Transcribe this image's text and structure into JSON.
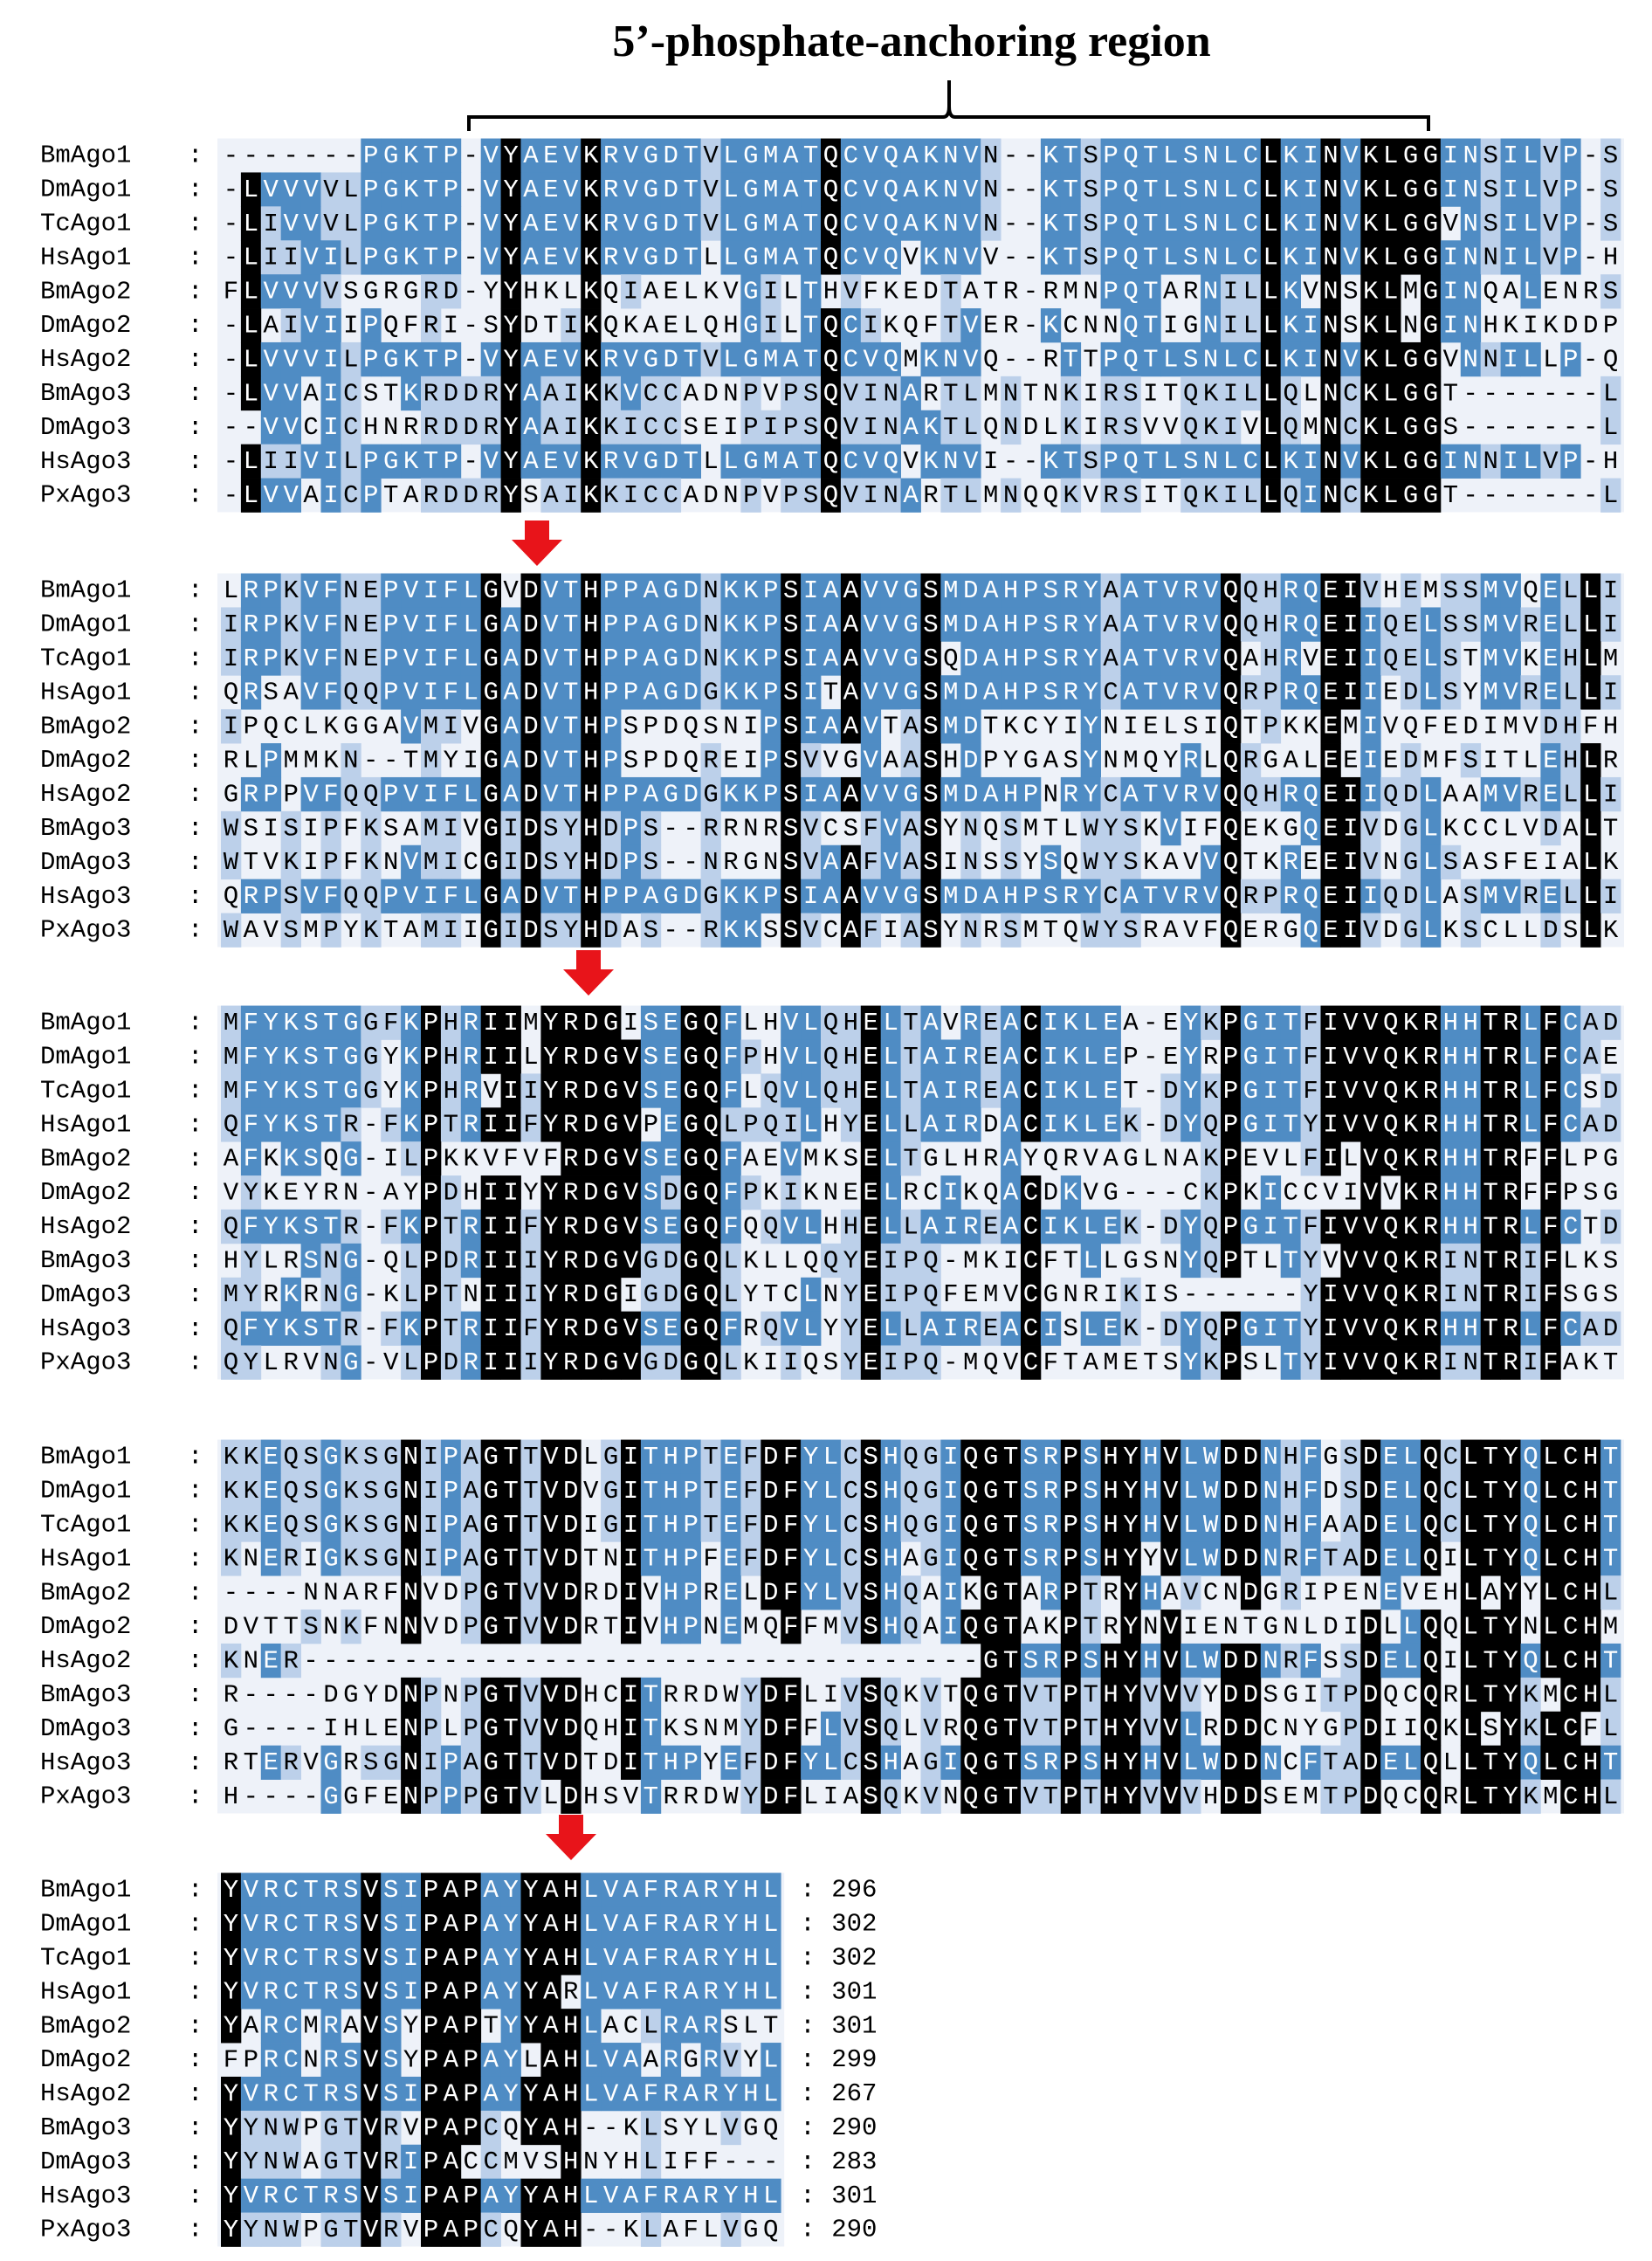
{
  "title": "5’-phosphate-anchoring region",
  "separator": ":",
  "blocks": [
    {
      "rows": [
        {
          "name": "BmAgo1",
          "sequence": "-------PGKTP-VYAEVKRVGDTVLGMATQCVQAKNVN--KTSPQTLSNLCLKINVKLGGINSILVP-S"
        },
        {
          "name": "DmAgo1",
          "sequence": "-LVVVVLPGKTP-VYAEVKRVGDTVLGMATQCVQAKNVN--KTSPQTLSNLCLKINVKLGGINSILVP-S"
        },
        {
          "name": "TcAgo1",
          "sequence": "-LIVVVLPGKTP-VYAEVKRVGDTVLGMATQCVQAKNVN--KTSPQTLSNLCLKINVKLGGVNSILVP-S"
        },
        {
          "name": "HsAgo1",
          "sequence": "-LIIVILPGKTP-VYAEVKRVGDTLLGMATQCVQVKNVV--KTSPQTLSNLCLKINVKLGGINNILVP-H"
        },
        {
          "name": "BmAgo2",
          "sequence": "FLVVVVSGRGRD-YYHKLKQIAELKVGILTHVFKEDTATR-RMNPQTARNILLKVNSKLMGINQALENRS"
        },
        {
          "name": "DmAgo2",
          "sequence": "-LAIVIIPQFRI-SYDTIKQKAELQHGILTQCIKQFTVER-KCNNQTIGNILLKINSKLNGINHKIKDDP"
        },
        {
          "name": "HsAgo2",
          "sequence": "-LVVVILPGKTP-VYAEVKRVGDTVLGMATQCVQMKNVQ--RTTPQTLSNLCLKINVKLGGVNNILLP-Q"
        },
        {
          "name": "BmAgo3",
          "sequence": "-LVVAICSTKRDDRYAAIKKVCCADNPVPSQVINARTLMNTNKIRSITQKILLQLNCKLGGT-------L"
        },
        {
          "name": "DmAgo3",
          "sequence": "--VVCICHNRRDDRYAAIKKICCSEIPIPSQVINAKTLQNDLKIRSVVQKIVLQMNCKLGGS-------L"
        },
        {
          "name": "HsAgo3",
          "sequence": "-LIIVILPGKTP-VYAEVKRVGDTLLGMATQCVQVKNVI--KTSPQTLSNLCLKINVKLGGINNILVP-H"
        },
        {
          "name": "PxAgo3",
          "sequence": "-LVVAICPTARDDRYSAIKKICCADNPVPSQVINARTLMNQQKVRSITQKILLQINCKLGGT-------L"
        }
      ]
    },
    {
      "rows": [
        {
          "name": "BmAgo1",
          "sequence": "LRPKVFNEPVIFLGVDVTHPPAGDNKKPSIAAVVGSMDAHPSRYAATVRVQQHRQEIVHEMSSMVQELLI"
        },
        {
          "name": "DmAgo1",
          "sequence": "IRPKVFNEPVIFLGADVTHPPAGDNKKPSIAAVVGSMDAHPSRYAATVRVQQHRQEIIQELSSMVRELLI"
        },
        {
          "name": "TcAgo1",
          "sequence": "IRPKVFNEPVIFLGADVTHPPAGDNKKPSIAAVVGSQDAHPSRYAATVRVQAHRVEIIQELSTMVKEHLM"
        },
        {
          "name": "HsAgo1",
          "sequence": "QRSAVFQQPVIFLGADVTHPPAGDGKKPSITAVVGSMDAHPSRYCATVRVQRPRQEIIEDLSYMVRELLI"
        },
        {
          "name": "BmAgo2",
          "sequence": "IPQCLKGGAVMIVGADVTHPSPDQSNIPSIAAVTASMDTKCYIYNIELSIQTPKKEMIVQFEDIMVDHFH"
        },
        {
          "name": "DmAgo2",
          "sequence": "RLPMMKN--TMYIGADVTHPSPDQREIPSVVGVAASHDPYGASYNMQYRLQRGALEEIEDMFSITLEHLR"
        },
        {
          "name": "HsAgo2",
          "sequence": "GRPPVFQQPVIFLGADVTHPPAGDGKKPSIAAVVGSMDAHPNRYCATVRVQQHRQEIIQDLAAMVRELLI"
        },
        {
          "name": "BmAgo3",
          "sequence": "WSISIPFKSAMIVGIDSYHDPS--RRNRSVCSFVASYNQSMTLWYSKVIFQEKGQEIVDGLKCCLVDALT"
        },
        {
          "name": "DmAgo3",
          "sequence": "WTVKIPFKNVMICGIDSYHDPS--NRGNSVAAFVASINSSYSQWYSKAVVQTKREEIVNGLSASFEIALK"
        },
        {
          "name": "HsAgo3",
          "sequence": "QRPSVFQQPVIFLGADVTHPPAGDGKKPSIAAVVGSMDAHPSRYCATVRVQRPRQEIIQDLASMVRELLI"
        },
        {
          "name": "PxAgo3",
          "sequence": "WAVSMPYKTAMIIGIDSYHDAS--RKKSSVCAFIASYNRSMTQWYSRAVFQERGQEIVDGLKSCLLDSLK"
        }
      ]
    },
    {
      "rows": [
        {
          "name": "BmAgo1",
          "sequence": "MFYKSTGGFKPHRIIMYRDGISEGQFLHVLQHELTAVREACIKLEA-EYKPGITFIVVQKRHHTRLFCAD"
        },
        {
          "name": "DmAgo1",
          "sequence": "MFYKSTGGYKPHRIILYRDGVSEGQFPHVLQHELTAIREACIKLEP-EYRPGITFIVVQKRHHTRLFCAE"
        },
        {
          "name": "TcAgo1",
          "sequence": "MFYKSTGGYKPHRVIIYRDGVSEGQFLQVLQHELTAIREACIKLET-DYKPGITFIVVQKRHHTRLFCSD"
        },
        {
          "name": "HsAgo1",
          "sequence": "QFYKSTR-FKPTRIIFYRDGVPEGQLPQILHYELLAIRDACIKLEK-DYQPGITYIVVQKRHHTRLFCAD"
        },
        {
          "name": "BmAgo2",
          "sequence": "AFKKSQG-ILPKKVFVFRDGVSEGQFAEVMKSELTGLHRAYQRVAGLNAKPEVLFILVQKRHHTRFFLPG"
        },
        {
          "name": "DmAgo2",
          "sequence": "VYKEYRN-AYPDHIIYYRDGVSDGQFPKIKNEELRCIKQACDKVG---CKPKICCVIVVKRHHTRFFPSG"
        },
        {
          "name": "HsAgo2",
          "sequence": "QFYKSTR-FKPTRIIFYRDGVSEGQFQQVLHHELLAIREACIKLEK-DYQPGITFIVVQKRHHTRLFCTD"
        },
        {
          "name": "BmAgo3",
          "sequence": "HYLRSNG-QLPDRIIIYRDGVGDGQLKLLQQYEIPQ-MKICFTLLGSNYQPTLTYVVVQKRINTRIFLKS"
        },
        {
          "name": "DmAgo3",
          "sequence": "MYRKRNG-KLPTNIIIYRDGIGDGQLYTCLNYEIPQFEMVCGNRIKIS------YIVVQKRINTRIFSGS"
        },
        {
          "name": "HsAgo3",
          "sequence": "QFYKSTR-FKPTRIIFYRDGVSEGQFRQVLYYELLAIREACISLEK-DYQPGITYIVVQKRHHTRLFCAD"
        },
        {
          "name": "PxAgo3",
          "sequence": "QYLRVNG-VLPDRIIIYRDGVGDGQLKIIQSYEIPQ-MQVCFTAMETSYKPSLTYIVVQKRINTRIFAKT"
        }
      ]
    },
    {
      "rows": [
        {
          "name": "BmAgo1",
          "sequence": "KKEQSGKSGNIPAGTTVDLGITHPTEFDFYLCSHQGIQGTSRPSHYHVLWDDNHFGSDELQCLTYQLCHT"
        },
        {
          "name": "DmAgo1",
          "sequence": "KKEQSGKSGNIPAGTTVDVGITHPTEFDFYLCSHQGIQGTSRPSHYHVLWDDNHFDSDELQCLTYQLCHT"
        },
        {
          "name": "TcAgo1",
          "sequence": "KKEQSGKSGNIPAGTTVDIGITHPTEFDFYLCSHQGIQGTSRPSHYHVLWDDNHFAADELQCLTYQLCHT"
        },
        {
          "name": "HsAgo1",
          "sequence": "KNERIGKSGNIPAGTTVDTNITHPFEFDFYLCSHAGIQGTSRPSHYYVLWDDNRFTADELQILTYQLCHT"
        },
        {
          "name": "BmAgo2",
          "sequence": "----NNARFNVDPGTVVDRDIVHPRELDFYLVSHQAIKGTARPTRYHAVCNDGRIPENEVEHLAYYLCHL"
        },
        {
          "name": "DmAgo2",
          "sequence": "DVTTSNKFNNVDPGTVVDRTIVHPNEMQFFMVSHQAIQGTAKPTRYNVIENTGNLDIDLLQQLTYNLCHM"
        },
        {
          "name": "HsAgo2",
          "sequence": "KNER----------------------------------GTSRPSHYHVLWDDNRFSSDELQILTYQLCHT"
        },
        {
          "name": "BmAgo3",
          "sequence": "R----DGYDNPNPGTVVDHCITRRDWYDFLIVSQKVTQGTVTPTHYVVVYDDSGITPDQCQRLTYKMCHL"
        },
        {
          "name": "DmAgo3",
          "sequence": "G----IHLENPLPGTVVDQHITKSNMYDFFLVSQLVRQGTVTPTHYVVLRDDCNYGPDIIQKLSYKLCFL"
        },
        {
          "name": "HsAgo3",
          "sequence": "RTERVGRSGNIPAGTTVDTDITHPYEFDFYLCSHAGIQGTSRPSHYHVLWDDNCFTADELQLLTYQLCHT"
        },
        {
          "name": "PxAgo3",
          "sequence": "H----GGFENPPPGTVLDHSVTRRDWYDFLIASQKVNQGTVTPTHYVVVHDDSEMTPDQCQRLTYKMCHL"
        }
      ]
    },
    {
      "rows": [
        {
          "name": "BmAgo1",
          "sequence": "YVRCTRSVSIPAPAYYAHLVAFRARYHL",
          "end": "296"
        },
        {
          "name": "DmAgo1",
          "sequence": "YVRCTRSVSIPAPAYYAHLVAFRARYHL",
          "end": "302"
        },
        {
          "name": "TcAgo1",
          "sequence": "YVRCTRSVSIPAPAYYAHLVAFRARYHL",
          "end": "302"
        },
        {
          "name": "HsAgo1",
          "sequence": "YVRCTRSVSIPAPAYYARLVAFRARYHL",
          "end": "301"
        },
        {
          "name": "BmAgo2",
          "sequence": "YARCMRAVSYPAPTYYAHLACLRARSLT",
          "end": "301"
        },
        {
          "name": "DmAgo2",
          "sequence": "FPRCNRSVSYPAPAYLAHLVAARGRVYL",
          "end": "299"
        },
        {
          "name": "HsAgo2",
          "sequence": "YVRCTRSVSIPAPAYYAHLVAFRARYHL",
          "end": "267"
        },
        {
          "name": "BmAgo3",
          "sequence": "YYNWPGTVRVPAPCQYAH--KLSYLVGQ",
          "end": "290"
        },
        {
          "name": "DmAgo3",
          "sequence": "YYNWAGTVRIPACCMVSHNYHLIFF---",
          "end": "283"
        },
        {
          "name": "HsAgo3",
          "sequence": "YVRCTRSVSIPAPAYYAHLVAFRARYHL",
          "end": "301"
        },
        {
          "name": "PxAgo3",
          "sequence": "YYNWPGTVRVPAPCQYAH--KLAFLVGQ",
          "end": "290"
        }
      ]
    }
  ]
}
